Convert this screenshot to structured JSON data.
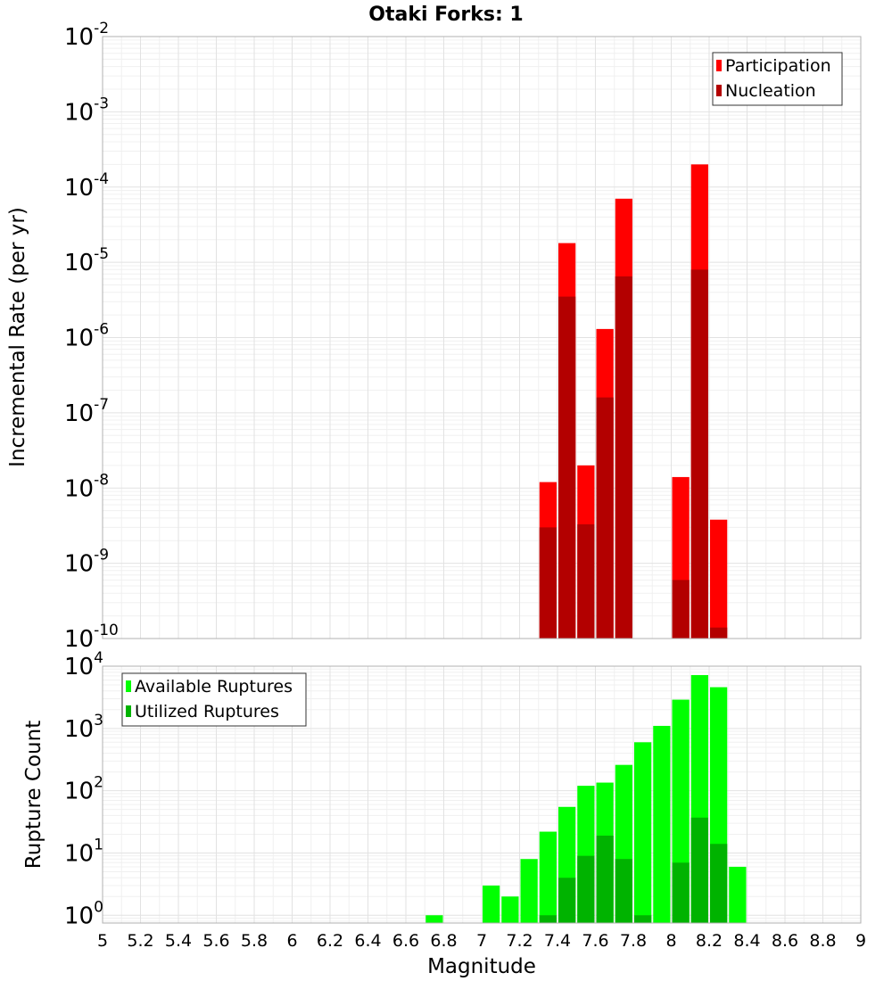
{
  "chart_data": {
    "title": "Otaki Forks: 1",
    "xlabel": "Magnitude",
    "xlim": [
      5,
      9
    ],
    "xticks": [
      "5",
      "5.2",
      "5.4",
      "5.6",
      "5.8",
      "6",
      "6.2",
      "6.4",
      "6.6",
      "6.8",
      "7",
      "7.2",
      "7.4",
      "7.6",
      "7.8",
      "8",
      "8.2",
      "8.4",
      "8.6",
      "8.8",
      "9"
    ],
    "bin_width": 0.1,
    "charts": [
      {
        "type": "bar",
        "scale": "log",
        "ylabel": "Incremental Rate (per yr)",
        "ylim": [
          1e-10,
          0.01
        ],
        "yticks": [
          {
            "base": "10",
            "exp": "-10"
          },
          {
            "base": "10",
            "exp": "-9"
          },
          {
            "base": "10",
            "exp": "-8"
          },
          {
            "base": "10",
            "exp": "-7"
          },
          {
            "base": "10",
            "exp": "-6"
          },
          {
            "base": "10",
            "exp": "-5"
          },
          {
            "base": "10",
            "exp": "-4"
          },
          {
            "base": "10",
            "exp": "-3"
          },
          {
            "base": "10",
            "exp": "-2"
          }
        ],
        "legend_position": "top-right",
        "series": [
          {
            "name": "Participation",
            "color": "#ff0000",
            "points": [
              {
                "x": 7.35,
                "y": 1.2e-08
              },
              {
                "x": 7.45,
                "y": 1.8e-05
              },
              {
                "x": 7.55,
                "y": 2e-08
              },
              {
                "x": 7.65,
                "y": 1.3e-06
              },
              {
                "x": 7.75,
                "y": 7e-05
              },
              {
                "x": 8.05,
                "y": 1.4e-08
              },
              {
                "x": 8.15,
                "y": 0.0002
              },
              {
                "x": 8.25,
                "y": 3.8e-09
              }
            ]
          },
          {
            "name": "Nucleation",
            "color": "#b30000",
            "points": [
              {
                "x": 7.35,
                "y": 3e-09
              },
              {
                "x": 7.45,
                "y": 3.5e-06
              },
              {
                "x": 7.55,
                "y": 3.3e-09
              },
              {
                "x": 7.65,
                "y": 1.6e-07
              },
              {
                "x": 7.75,
                "y": 6.5e-06
              },
              {
                "x": 8.05,
                "y": 6e-10
              },
              {
                "x": 8.15,
                "y": 8e-06
              },
              {
                "x": 8.25,
                "y": 1.4e-10
              }
            ]
          }
        ]
      },
      {
        "type": "bar",
        "scale": "log",
        "ylabel": "Rupture Count",
        "ylim": [
          0.75,
          10000
        ],
        "yticks": [
          {
            "base": "10",
            "exp": "0"
          },
          {
            "base": "10",
            "exp": "1"
          },
          {
            "base": "10",
            "exp": "2"
          },
          {
            "base": "10",
            "exp": "3"
          },
          {
            "base": "10",
            "exp": "4"
          }
        ],
        "legend_position": "top-left",
        "series": [
          {
            "name": "Available Ruptures",
            "color": "#00ff00",
            "points": [
              {
                "x": 6.75,
                "y": 1
              },
              {
                "x": 7.05,
                "y": 3
              },
              {
                "x": 7.15,
                "y": 2
              },
              {
                "x": 7.25,
                "y": 8
              },
              {
                "x": 7.35,
                "y": 22
              },
              {
                "x": 7.45,
                "y": 55
              },
              {
                "x": 7.55,
                "y": 120
              },
              {
                "x": 7.65,
                "y": 135
              },
              {
                "x": 7.75,
                "y": 260
              },
              {
                "x": 7.85,
                "y": 600
              },
              {
                "x": 7.95,
                "y": 1100
              },
              {
                "x": 8.05,
                "y": 2900
              },
              {
                "x": 8.15,
                "y": 7200
              },
              {
                "x": 8.25,
                "y": 4600
              },
              {
                "x": 8.35,
                "y": 6
              }
            ]
          },
          {
            "name": "Utilized Ruptures",
            "color": "#00b300",
            "points": [
              {
                "x": 7.35,
                "y": 1
              },
              {
                "x": 7.45,
                "y": 4
              },
              {
                "x": 7.55,
                "y": 9
              },
              {
                "x": 7.65,
                "y": 19
              },
              {
                "x": 7.75,
                "y": 8
              },
              {
                "x": 7.85,
                "y": 1
              },
              {
                "x": 8.05,
                "y": 7
              },
              {
                "x": 8.15,
                "y": 37
              },
              {
                "x": 8.25,
                "y": 14
              }
            ]
          }
        ]
      }
    ]
  }
}
